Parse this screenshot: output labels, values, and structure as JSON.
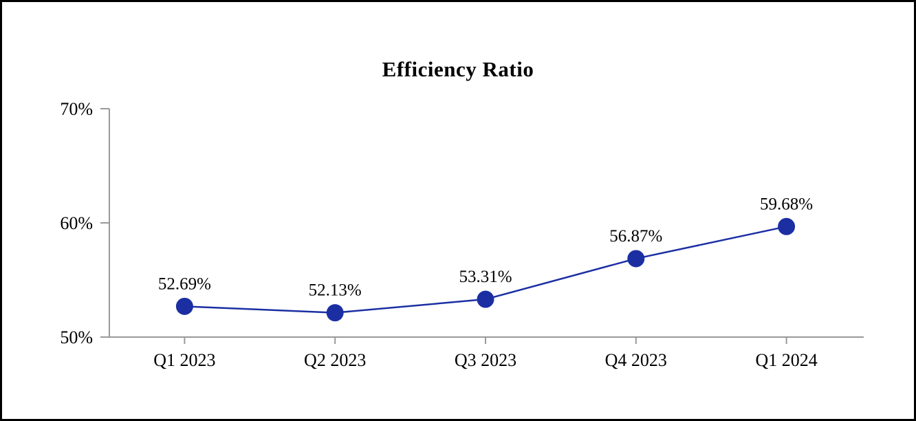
{
  "chart_data": {
    "type": "line",
    "title": "Efficiency Ratio",
    "categories": [
      "Q1 2023",
      "Q2 2023",
      "Q3 2023",
      "Q4 2023",
      "Q1 2024"
    ],
    "values": [
      52.69,
      52.13,
      53.31,
      56.87,
      59.68
    ],
    "data_labels": [
      "52.69%",
      "52.13%",
      "53.31%",
      "56.87%",
      "59.68%"
    ],
    "xlabel": "",
    "ylabel": "",
    "ylim": [
      50,
      70
    ],
    "y_ticks": [
      50,
      60,
      70
    ],
    "y_tick_labels": [
      "50%",
      "60%",
      "70%"
    ],
    "grid": false,
    "legend": false,
    "colors": {
      "series": "#1B2FA3",
      "axis": "#999999",
      "text": "#000000",
      "background": "#ffffff",
      "frame_border": "#000000"
    }
  }
}
